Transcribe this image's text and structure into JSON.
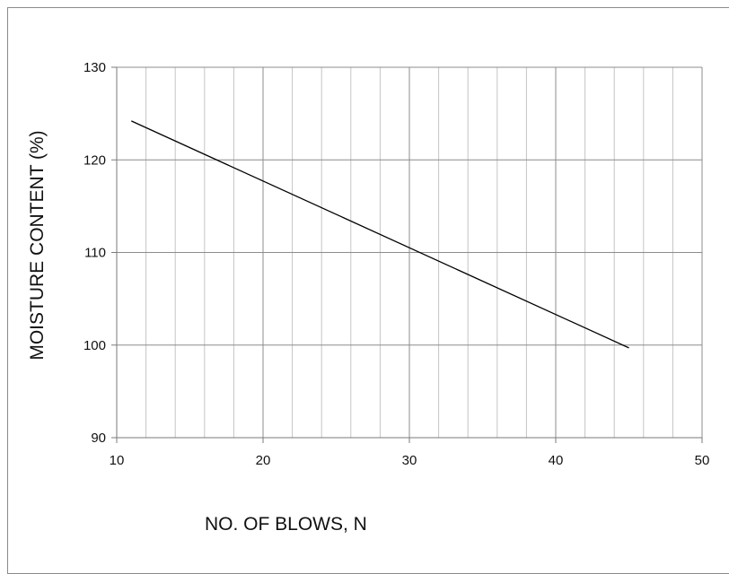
{
  "chart_data": {
    "type": "line",
    "title": "",
    "xlabel": "NO. OF BLOWS, N",
    "ylabel": "MOISTURE  CONTENT (%)",
    "xlim": [
      10,
      50
    ],
    "ylim": [
      90,
      130
    ],
    "x_ticks": [
      "10",
      "20",
      "30",
      "40",
      "50"
    ],
    "y_ticks": [
      "90",
      "100",
      "110",
      "120",
      "130"
    ],
    "x_minor_step": 2,
    "grid": true,
    "legend": "none",
    "series": [
      {
        "x": [
          11,
          45
        ],
        "y": [
          124.2,
          99.7
        ],
        "color": "#000000"
      }
    ]
  }
}
